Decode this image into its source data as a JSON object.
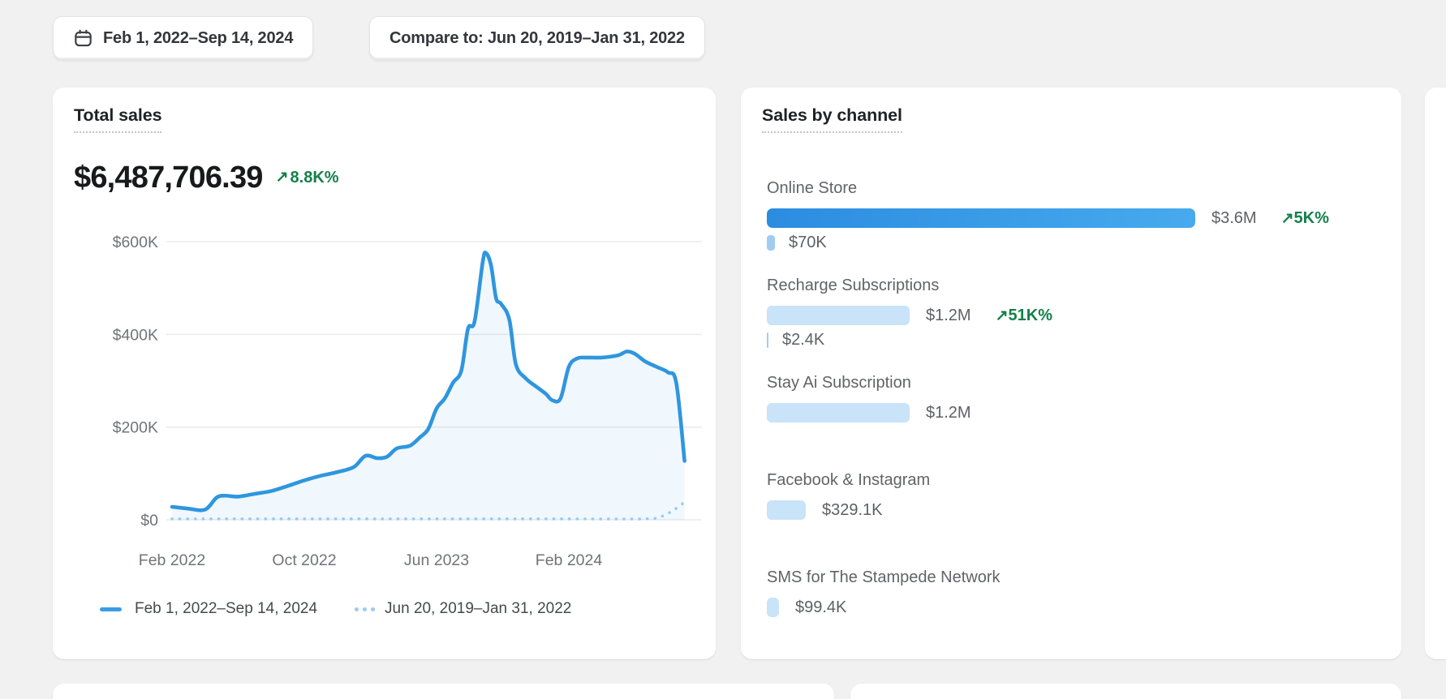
{
  "toolbar": {
    "date_range_button": {
      "label": "Feb 1, 2022–Sep 14, 2024",
      "icon": "calendar-icon"
    },
    "compare_button": {
      "label": "Compare to: Jun 20, 2019–Jan 31, 2022"
    }
  },
  "total_sales_card": {
    "title": "Total sales",
    "value": "$6,487,706.39",
    "change": {
      "glyph": "↗",
      "label": "8.8K%",
      "direction": "up"
    },
    "legend": [
      {
        "label": "Feb 1, 2022–Sep 14, 2024",
        "marker": "solid-line"
      },
      {
        "label": "Jun 20, 2019–Jan 31, 2022",
        "marker": "dotted-line"
      }
    ],
    "chart_data": {
      "type": "line",
      "title": "Total sales",
      "x_unit": "months since Feb 2022 (0 = Feb 2022, 31 = Sep 2024)",
      "y_unit": "USD thousands",
      "ylim": [
        0,
        600
      ],
      "grid": true,
      "x_ticks": [
        {
          "m": 0,
          "label": "Feb 2022"
        },
        {
          "m": 8,
          "label": "Oct 2022"
        },
        {
          "m": 16,
          "label": "Jun 2023"
        },
        {
          "m": 24,
          "label": "Feb 2024"
        }
      ],
      "y_ticks": [
        {
          "v": 0,
          "label": "$0"
        },
        {
          "v": 200,
          "label": "$200K"
        },
        {
          "v": 400,
          "label": "$400K"
        },
        {
          "v": 600,
          "label": "$600K"
        }
      ],
      "series": [
        {
          "name": "Feb 1, 2022–Sep 14, 2024",
          "style": "solid",
          "points": [
            [
              0,
              28
            ],
            [
              1,
              24
            ],
            [
              2,
              22
            ],
            [
              2.7,
              48
            ],
            [
              3.2,
              52
            ],
            [
              4,
              50
            ],
            [
              5,
              56
            ],
            [
              6,
              62
            ],
            [
              7,
              73
            ],
            [
              8,
              85
            ],
            [
              9,
              95
            ],
            [
              10,
              103
            ],
            [
              11,
              114
            ],
            [
              11.7,
              138
            ],
            [
              12.4,
              133
            ],
            [
              13,
              136
            ],
            [
              13.6,
              154
            ],
            [
              14.4,
              160
            ],
            [
              15,
              178
            ],
            [
              15.5,
              196
            ],
            [
              16,
              240
            ],
            [
              16.5,
              262
            ],
            [
              17,
              296
            ],
            [
              17.5,
              322
            ],
            [
              17.9,
              412
            ],
            [
              18.3,
              428
            ],
            [
              18.8,
              558
            ],
            [
              19,
              575
            ],
            [
              19.3,
              548
            ],
            [
              19.6,
              478
            ],
            [
              19.9,
              466
            ],
            [
              20.4,
              432
            ],
            [
              20.8,
              335
            ],
            [
              21.4,
              305
            ],
            [
              22,
              288
            ],
            [
              22.6,
              272
            ],
            [
              23,
              258
            ],
            [
              23.5,
              262
            ],
            [
              24,
              330
            ],
            [
              24.5,
              348
            ],
            [
              25,
              350
            ],
            [
              26,
              350
            ],
            [
              27,
              355
            ],
            [
              27.5,
              363
            ],
            [
              28,
              358
            ],
            [
              28.6,
              342
            ],
            [
              29.3,
              330
            ],
            [
              30,
              318
            ],
            [
              30.5,
              295
            ],
            [
              31,
              127
            ]
          ]
        },
        {
          "name": "Jun 20, 2019–Jan 31, 2022",
          "style": "dotted",
          "points": [
            [
              0,
              2
            ],
            [
              8,
              2
            ],
            [
              16,
              2
            ],
            [
              24,
              2
            ],
            [
              28.5,
              2
            ],
            [
              29.5,
              6
            ],
            [
              30.3,
              20
            ],
            [
              31,
              38
            ]
          ]
        }
      ]
    }
  },
  "sales_by_channel_card": {
    "title": "Sales by channel",
    "max_value": 3600000,
    "chart_data": {
      "type": "bar",
      "categories": [
        "Online Store",
        "Recharge Subscriptions",
        "Stay Ai Subscription",
        "Facebook & Instagram",
        "SMS for The Stampede Network"
      ],
      "values": [
        3600000,
        1200000,
        1200000,
        329100,
        99400
      ],
      "compare_values": [
        70000,
        2400,
        null,
        null,
        null
      ]
    },
    "channels": [
      {
        "name": "Online Store",
        "value": 3600000,
        "value_label": "$3.6M",
        "change": {
          "glyph": "↗",
          "label": "5K%"
        },
        "compare": {
          "value": 70000,
          "label": "$70K"
        },
        "highlighted": true
      },
      {
        "name": "Recharge Subscriptions",
        "value": 1200000,
        "value_label": "$1.2M",
        "change": {
          "glyph": "↗",
          "label": "51K%"
        },
        "compare": {
          "value": 2400,
          "label": "$2.4K"
        },
        "highlighted": false
      },
      {
        "name": "Stay Ai Subscription",
        "value": 1200000,
        "value_label": "$1.2M",
        "highlighted": false
      },
      {
        "name": "Facebook & Instagram",
        "value": 329100,
        "value_label": "$329.1K",
        "highlighted": false
      },
      {
        "name": "SMS for The Stampede Network",
        "value": 99400,
        "value_label": "$99.4K",
        "highlighted": false
      }
    ]
  },
  "colors": {
    "page_bg": "#f1f1f1",
    "line_main": "#2f96de",
    "line_compare": "#9dcaf0",
    "area_fill": "rgba(47,150,222,0.07)",
    "bar_highlight_gradient": [
      "#2c8ce0",
      "#47aaee"
    ],
    "bar_light": "#c9e3f8",
    "bar_compare": "#9fcdf1",
    "positive_green": "#14804a",
    "grid": "#e9ebed",
    "axis_text": "#6f747a"
  }
}
